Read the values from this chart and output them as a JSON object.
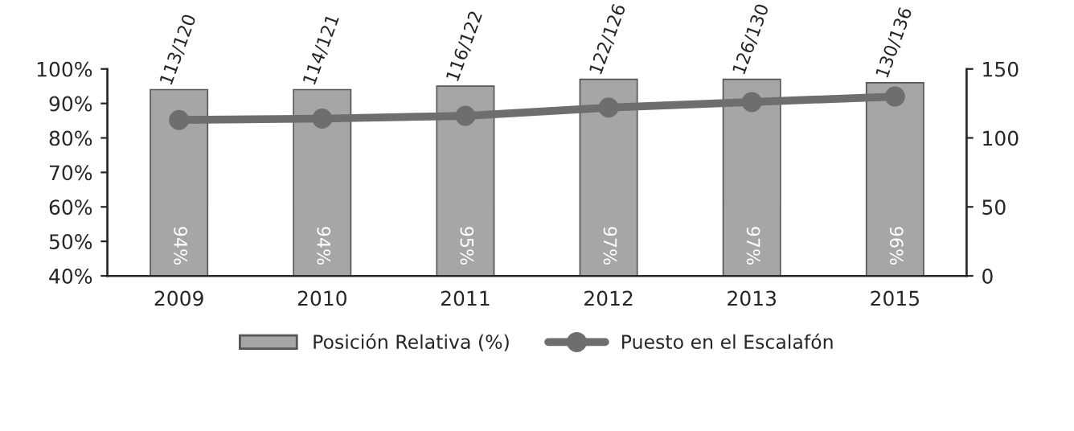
{
  "chart_data": {
    "type": "bar",
    "categories": [
      "2009",
      "2010",
      "2011",
      "2012",
      "2013",
      "2015"
    ],
    "series": [
      {
        "name": "Posición Relativa (%)",
        "color": "#a6a6a6",
        "values": [
          94,
          94,
          95,
          97,
          97,
          96
        ],
        "value_labels": [
          "94%",
          "94%",
          "95%",
          "97%",
          "97%",
          "96%"
        ]
      },
      {
        "name": "Puesto en el Escalafón",
        "type": "line",
        "axis": "y2",
        "color": "#6e6e6e",
        "marker": "circle",
        "values": [
          113,
          114,
          116,
          122,
          126,
          130
        ],
        "value_labels": [
          "113/120",
          "114/121",
          "116/122",
          "122/126",
          "126/130",
          "130/136"
        ]
      }
    ],
    "ylim": [
      40,
      100
    ],
    "yticks": [
      {
        "value": 40,
        "label": "40%"
      },
      {
        "value": 50,
        "label": "50%"
      },
      {
        "value": 60,
        "label": "60%"
      },
      {
        "value": 70,
        "label": "70%"
      },
      {
        "value": 80,
        "label": "80%"
      },
      {
        "value": 90,
        "label": "90%"
      },
      {
        "value": 100,
        "label": "100%"
      }
    ],
    "y2lim": [
      0,
      150
    ],
    "y2ticks": [
      0,
      50,
      100,
      150
    ],
    "grid": false,
    "legend": "bottom"
  }
}
